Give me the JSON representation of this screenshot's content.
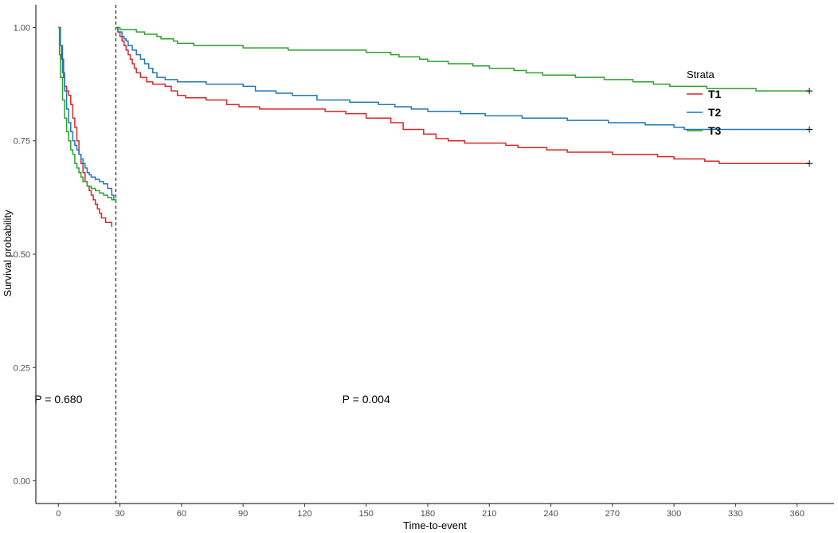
{
  "chart_data": {
    "type": "line",
    "title": "",
    "xlabel": "Time-to-event",
    "ylabel": "Survival probability",
    "xlim": [
      -11,
      378
    ],
    "ylim": [
      -0.05,
      1.05
    ],
    "x_ticks": [
      0,
      30,
      60,
      90,
      120,
      150,
      180,
      210,
      240,
      270,
      300,
      330,
      360
    ],
    "y_ticks": [
      0.0,
      0.25,
      0.5,
      0.75,
      1.0
    ],
    "y_tick_labels": [
      "0.00",
      "0.25",
      "0.50",
      "0.75",
      "1.00"
    ],
    "grid": false,
    "landmark_line": 28,
    "legend": {
      "title": "Strata",
      "position": "right"
    },
    "annotations": [
      {
        "text": "P = 0.680",
        "x": 0,
        "y": 0.18
      },
      {
        "text": "P = 0.004",
        "x": 150,
        "y": 0.18
      }
    ],
    "series": [
      {
        "name": "T1",
        "color": "#d62728",
        "segments": [
          [
            [
              0,
              1.0
            ],
            [
              0.7,
              0.96
            ],
            [
              1.5,
              0.93
            ],
            [
              2.5,
              0.89
            ],
            [
              3,
              0.87
            ],
            [
              4,
              0.86
            ],
            [
              5,
              0.85
            ],
            [
              6,
              0.83
            ],
            [
              7,
              0.8
            ],
            [
              8,
              0.78
            ],
            [
              9,
              0.75
            ],
            [
              10,
              0.72
            ],
            [
              11,
              0.7
            ],
            [
              12,
              0.68
            ],
            [
              13,
              0.66
            ],
            [
              14,
              0.65
            ],
            [
              15,
              0.64
            ],
            [
              16,
              0.63
            ],
            [
              17,
              0.62
            ],
            [
              18,
              0.61
            ],
            [
              19,
              0.6
            ],
            [
              20,
              0.59
            ],
            [
              21,
              0.58
            ],
            [
              23,
              0.57
            ],
            [
              26,
              0.56
            ]
          ],
          [
            [
              28,
              1.0
            ],
            [
              29,
              0.99
            ],
            [
              30,
              0.98
            ],
            [
              31,
              0.97
            ],
            [
              32,
              0.96
            ],
            [
              33,
              0.95
            ],
            [
              34,
              0.94
            ],
            [
              35,
              0.93
            ],
            [
              36,
              0.92
            ],
            [
              37,
              0.91
            ],
            [
              38,
              0.9
            ],
            [
              40,
              0.89
            ],
            [
              43,
              0.88
            ],
            [
              46,
              0.875
            ],
            [
              52,
              0.87
            ],
            [
              55,
              0.86
            ],
            [
              58,
              0.85
            ],
            [
              62,
              0.845
            ],
            [
              72,
              0.84
            ],
            [
              82,
              0.83
            ],
            [
              88,
              0.825
            ],
            [
              98,
              0.82
            ],
            [
              130,
              0.815
            ],
            [
              140,
              0.81
            ],
            [
              150,
              0.8
            ],
            [
              162,
              0.79
            ],
            [
              168,
              0.775
            ],
            [
              178,
              0.765
            ],
            [
              184,
              0.755
            ],
            [
              190,
              0.75
            ],
            [
              198,
              0.745
            ],
            [
              218,
              0.74
            ],
            [
              224,
              0.735
            ],
            [
              238,
              0.73
            ],
            [
              248,
              0.725
            ],
            [
              270,
              0.72
            ],
            [
              292,
              0.715
            ],
            [
              300,
              0.71
            ],
            [
              315,
              0.705
            ],
            [
              322,
              0.7
            ],
            [
              366,
              0.7
            ]
          ]
        ],
        "censor_marks": [
          [
            366,
            0.7
          ]
        ]
      },
      {
        "name": "T2",
        "color": "#1f77b4",
        "segments": [
          [
            [
              0,
              1.0
            ],
            [
              1,
              0.96
            ],
            [
              2,
              0.9
            ],
            [
              3,
              0.86
            ],
            [
              4,
              0.82
            ],
            [
              5,
              0.79
            ],
            [
              6,
              0.77
            ],
            [
              7,
              0.75
            ],
            [
              8,
              0.74
            ],
            [
              9,
              0.73
            ],
            [
              10,
              0.72
            ],
            [
              11,
              0.71
            ],
            [
              12,
              0.7
            ],
            [
              13,
              0.69
            ],
            [
              14,
              0.68
            ],
            [
              15,
              0.675
            ],
            [
              16,
              0.67
            ],
            [
              18,
              0.665
            ],
            [
              20,
              0.66
            ],
            [
              22,
              0.655
            ],
            [
              24,
              0.645
            ],
            [
              26,
              0.63
            ],
            [
              27,
              0.62
            ]
          ],
          [
            [
              28,
              1.0
            ],
            [
              29,
              0.99
            ],
            [
              31,
              0.98
            ],
            [
              32,
              0.975
            ],
            [
              33,
              0.97
            ],
            [
              34,
              0.96
            ],
            [
              36,
              0.95
            ],
            [
              38,
              0.94
            ],
            [
              40,
              0.93
            ],
            [
              42,
              0.92
            ],
            [
              44,
              0.91
            ],
            [
              46,
              0.9
            ],
            [
              48,
              0.89
            ],
            [
              52,
              0.885
            ],
            [
              58,
              0.88
            ],
            [
              72,
              0.875
            ],
            [
              90,
              0.87
            ],
            [
              96,
              0.86
            ],
            [
              106,
              0.855
            ],
            [
              114,
              0.85
            ],
            [
              126,
              0.84
            ],
            [
              142,
              0.835
            ],
            [
              156,
              0.83
            ],
            [
              164,
              0.825
            ],
            [
              172,
              0.82
            ],
            [
              180,
              0.815
            ],
            [
              196,
              0.81
            ],
            [
              208,
              0.805
            ],
            [
              226,
              0.8
            ],
            [
              248,
              0.795
            ],
            [
              268,
              0.79
            ],
            [
              286,
              0.785
            ],
            [
              300,
              0.78
            ],
            [
              305,
              0.775
            ],
            [
              366,
              0.775
            ]
          ]
        ],
        "censor_marks": [
          [
            366,
            0.775
          ]
        ]
      },
      {
        "name": "T3",
        "color": "#2ca02c",
        "segments": [
          [
            [
              0,
              1.0
            ],
            [
              0.5,
              0.94
            ],
            [
              1,
              0.89
            ],
            [
              2,
              0.84
            ],
            [
              3,
              0.8
            ],
            [
              4,
              0.77
            ],
            [
              5,
              0.75
            ],
            [
              6,
              0.73
            ],
            [
              7,
              0.72
            ],
            [
              8,
              0.7
            ],
            [
              9,
              0.69
            ],
            [
              10,
              0.68
            ],
            [
              11,
              0.67
            ],
            [
              12,
              0.66
            ],
            [
              14,
              0.65
            ],
            [
              16,
              0.645
            ],
            [
              18,
              0.64
            ],
            [
              20,
              0.635
            ],
            [
              22,
              0.63
            ],
            [
              24,
              0.625
            ],
            [
              26,
              0.62
            ],
            [
              28,
              0.615
            ]
          ],
          [
            [
              28,
              1.0
            ],
            [
              30,
              0.995
            ],
            [
              38,
              0.99
            ],
            [
              42,
              0.985
            ],
            [
              48,
              0.98
            ],
            [
              50,
              0.975
            ],
            [
              56,
              0.97
            ],
            [
              58,
              0.965
            ],
            [
              66,
              0.96
            ],
            [
              90,
              0.955
            ],
            [
              112,
              0.95
            ],
            [
              150,
              0.945
            ],
            [
              162,
              0.94
            ],
            [
              166,
              0.935
            ],
            [
              176,
              0.93
            ],
            [
              180,
              0.925
            ],
            [
              190,
              0.92
            ],
            [
              202,
              0.915
            ],
            [
              210,
              0.91
            ],
            [
              222,
              0.905
            ],
            [
              228,
              0.9
            ],
            [
              236,
              0.895
            ],
            [
              252,
              0.89
            ],
            [
              266,
              0.885
            ],
            [
              280,
              0.88
            ],
            [
              290,
              0.875
            ],
            [
              298,
              0.87
            ],
            [
              316,
              0.865
            ],
            [
              340,
              0.86
            ],
            [
              366,
              0.86
            ]
          ]
        ],
        "censor_marks": [
          [
            366,
            0.86
          ]
        ]
      }
    ]
  }
}
